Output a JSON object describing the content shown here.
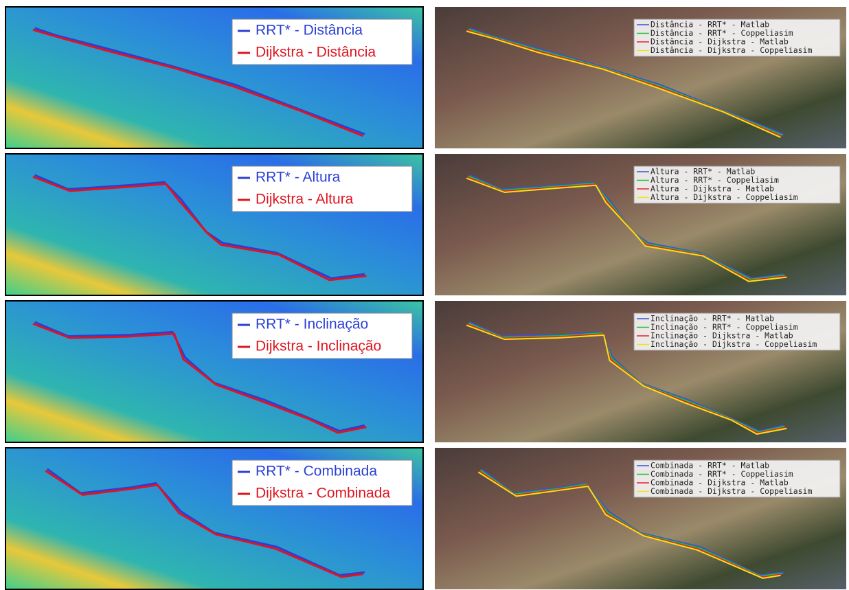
{
  "left_panels": [
    {
      "legend": [
        {
          "label": "RRT* - Distância",
          "color": "#2a3fd6"
        },
        {
          "label": "Dijkstra - Distância",
          "color": "#e0141e"
        }
      ]
    },
    {
      "legend": [
        {
          "label": "RRT* - Altura",
          "color": "#2a3fd6"
        },
        {
          "label": "Dijkstra - Altura",
          "color": "#e0141e"
        }
      ]
    },
    {
      "legend": [
        {
          "label": "RRT* - Inclinação",
          "color": "#2a3fd6"
        },
        {
          "label": "Dijkstra - Inclinação",
          "color": "#e0141e"
        }
      ]
    },
    {
      "legend": [
        {
          "label": "RRT* - Combinada",
          "color": "#2a3fd6"
        },
        {
          "label": "Dijkstra - Combinada",
          "color": "#e0141e"
        }
      ]
    }
  ],
  "right_panels": [
    {
      "legend": [
        {
          "label": "Distância - RRT* - Matlab",
          "color": "#3b4fe0"
        },
        {
          "label": "Distância - RRT* - Coppeliasim",
          "color": "#22c02a"
        },
        {
          "label": "Distância - Dijkstra - Matlab",
          "color": "#e8202a"
        },
        {
          "label": "Distância - Dijkstra - Coppeliasim",
          "color": "#f2e21a"
        }
      ]
    },
    {
      "legend": [
        {
          "label": "Altura - RRT* - Matlab",
          "color": "#3b4fe0"
        },
        {
          "label": "Altura - RRT* - Coppeliasim",
          "color": "#22c02a"
        },
        {
          "label": "Altura - Dijkstra - Matlab",
          "color": "#e8202a"
        },
        {
          "label": "Altura - Dijkstra - Coppeliasim",
          "color": "#f2e21a"
        }
      ]
    },
    {
      "legend": [
        {
          "label": "Inclinação - RRT* - Matlab",
          "color": "#3b4fe0"
        },
        {
          "label": "Inclinação - RRT* - Coppeliasim",
          "color": "#22c02a"
        },
        {
          "label": "Inclinação - Dijkstra - Matlab",
          "color": "#e8202a"
        },
        {
          "label": "Inclinação - Dijkstra - Coppeliasim",
          "color": "#f2e21a"
        }
      ]
    },
    {
      "legend": [
        {
          "label": "Combinada - RRT* - Matlab",
          "color": "#3b4fe0"
        },
        {
          "label": "Combinada - RRT* - Coppeliasim",
          "color": "#22c02a"
        },
        {
          "label": "Combinada - Dijkstra - Matlab",
          "color": "#e8202a"
        },
        {
          "label": "Combinada - Dijkstra - Coppeliasim",
          "color": "#f2e21a"
        }
      ]
    }
  ]
}
